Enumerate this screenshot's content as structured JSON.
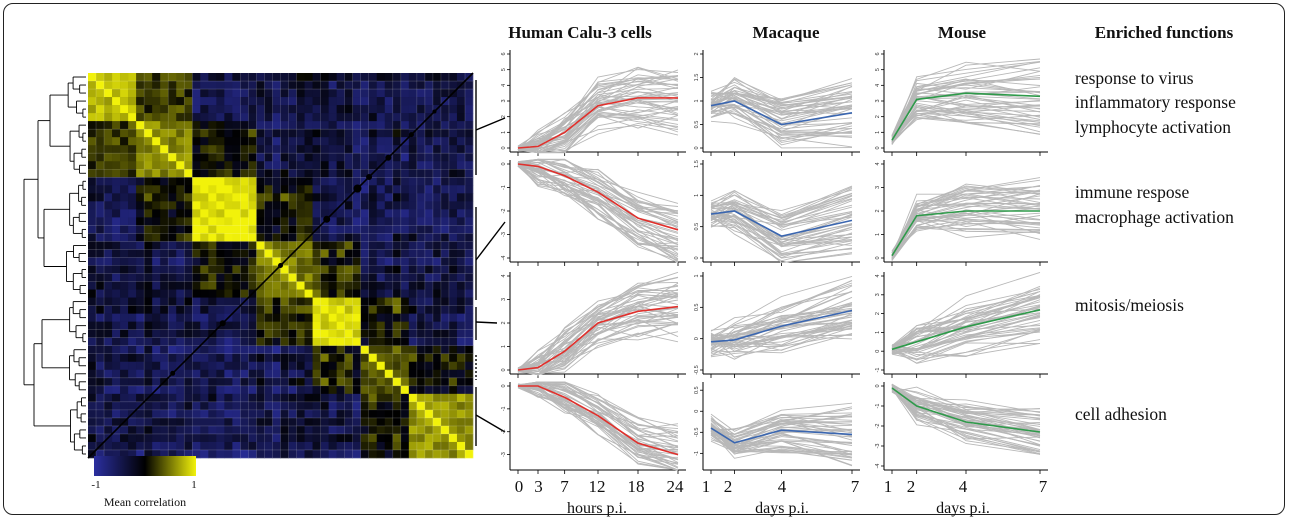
{
  "column_headers": {
    "human": "Human Calu-3 cells",
    "macaque": "Macaque",
    "mouse": "Mouse",
    "functions": "Enriched functions"
  },
  "x_axes": {
    "human": {
      "ticks": [
        "0",
        "3",
        "7",
        "12",
        "18",
        "24"
      ],
      "label": "hours p.i."
    },
    "macaque": {
      "ticks": [
        "1",
        "2",
        "4",
        "7"
      ],
      "label": "days p.i."
    },
    "mouse": {
      "ticks": [
        "1",
        "2",
        "4",
        "7"
      ],
      "label": "days p.i."
    }
  },
  "legend": {
    "title": "Mean correlation",
    "min_label": "-1",
    "max_label": "1",
    "colors": [
      "#2b2fa0",
      "#000000",
      "#f2f20a"
    ]
  },
  "enriched_functions": [
    [
      "response to virus",
      "inflammatory response",
      "lymphocyte activation"
    ],
    [
      "immune respose",
      "macrophage activation"
    ],
    [
      "mitosis/meiosis"
    ],
    [
      "cell adhesion"
    ]
  ],
  "colors": {
    "human": "#e0302c",
    "macaque": "#3a66b0",
    "mouse": "#2e9a4a",
    "background_lines": "#b8b8b8"
  },
  "chart_data": [
    {
      "type": "line",
      "panel": "Human Calu-3 cells",
      "x": [
        0,
        3,
        7,
        12,
        18,
        24
      ],
      "xlabel": "hours p.i.",
      "series": [
        {
          "values": [
            0,
            0.1,
            1.0,
            2.7,
            3.2,
            3.2
          ],
          "ylim": [
            0,
            6
          ],
          "yticks": [
            0,
            1,
            2,
            3,
            4,
            5,
            6
          ]
        },
        {
          "values": [
            0,
            -0.1,
            -0.5,
            -1.2,
            -2.3,
            -2.8
          ],
          "ylim": [
            -4,
            0
          ],
          "yticks": [
            -4,
            -3,
            -2,
            -1,
            0
          ]
        },
        {
          "values": [
            0,
            0.1,
            0.8,
            2.0,
            2.5,
            2.7
          ],
          "ylim": [
            0,
            4
          ],
          "yticks": [
            0,
            1,
            2,
            3,
            4
          ]
        },
        {
          "values": [
            0,
            0,
            -0.5,
            -1.3,
            -2.5,
            -3.0
          ],
          "ylim": [
            -3.5,
            0
          ],
          "yticks": [
            -3,
            -2,
            -1,
            0
          ]
        }
      ]
    },
    {
      "type": "line",
      "panel": "Macaque",
      "x": [
        1,
        2,
        4,
        7
      ],
      "xlabel": "days p.i.",
      "series": [
        {
          "values": [
            0.9,
            1.0,
            0.5,
            0.75
          ],
          "ylim": [
            0,
            2
          ],
          "yticks": [
            0,
            0.5,
            1,
            1.5,
            2
          ]
        },
        {
          "values": [
            0.7,
            0.75,
            0.35,
            0.6
          ],
          "ylim": [
            0,
            1.5
          ],
          "yticks": [
            0,
            0.5,
            1,
            1.5
          ]
        },
        {
          "values": [
            -0.05,
            -0.02,
            0.2,
            0.45
          ],
          "ylim": [
            -0.5,
            1
          ],
          "yticks": [
            -0.5,
            0,
            0.5,
            1
          ]
        },
        {
          "values": [
            -0.4,
            -0.75,
            -0.45,
            -0.55
          ],
          "ylim": [
            -1.3,
            0.6
          ],
          "yticks": [
            -1,
            -0.5,
            0,
            0.5
          ]
        }
      ]
    },
    {
      "type": "line",
      "panel": "Mouse",
      "x": [
        1,
        2,
        4,
        7
      ],
      "xlabel": "days p.i.",
      "series": [
        {
          "values": [
            0.5,
            3.1,
            3.5,
            3.3
          ],
          "ylim": [
            0,
            6
          ],
          "yticks": [
            0,
            1,
            2,
            3,
            4,
            5,
            6
          ]
        },
        {
          "values": [
            0.1,
            1.8,
            2.0,
            2.0
          ],
          "ylim": [
            0,
            4
          ],
          "yticks": [
            0,
            1,
            2,
            3,
            4
          ]
        },
        {
          "values": [
            0.1,
            0.5,
            1.3,
            2.2
          ],
          "ylim": [
            -1,
            4
          ],
          "yticks": [
            -1,
            0,
            1,
            2,
            3,
            4
          ]
        },
        {
          "values": [
            -0.1,
            -1.0,
            -1.8,
            -2.3
          ],
          "ylim": [
            -4,
            0
          ],
          "yticks": [
            -4,
            -3,
            -2,
            -1,
            0
          ]
        }
      ]
    }
  ]
}
